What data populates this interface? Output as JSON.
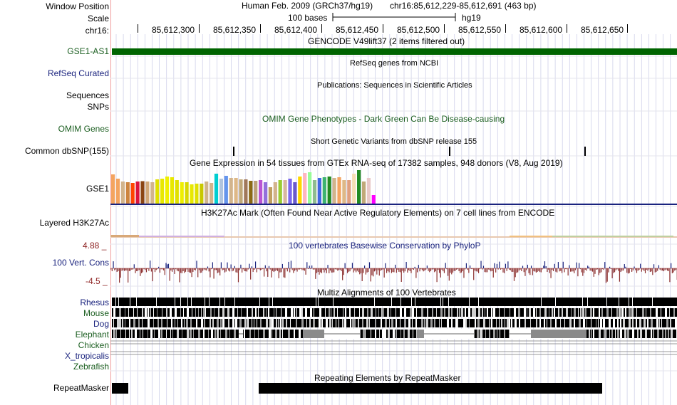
{
  "header": {
    "window_position_label": "Window Position",
    "assembly": "Human Feb. 2009 (GRCh37/hg19)",
    "position": "chr16:85,612,229-85,612,691 (463 bp)",
    "scale_label": "Scale",
    "scale_text": "100 bases",
    "scale_db": "hg19",
    "chrom_label": "chr16:",
    "ticks": [
      "85,612,300",
      "85,612,350",
      "85,612,400",
      "85,612,450",
      "85,612,500",
      "85,612,550",
      "85,612,600",
      "85,612,650"
    ]
  },
  "tracks": {
    "gencode": {
      "title": "GENCODE V49lift37 (2 items filtered out)",
      "label": "GSE1-AS1"
    },
    "refseq": {
      "title": "RefSeq genes from NCBI",
      "label": "RefSeq Curated"
    },
    "pubs": {
      "title": "Publications: Sequences in Scientific Articles",
      "label": "Sequences"
    },
    "snps": {
      "label": "SNPs"
    },
    "omim": {
      "title": "OMIM Gene Phenotypes - Dark Green Can Be Disease-causing",
      "label": "OMIM Genes"
    },
    "dbsnp": {
      "title": "Short Genetic Variants from dbSNP release 155",
      "label": "Common dbSNP(155)"
    },
    "gtex": {
      "title": "Gene Expression in 54 tissues from GTEx RNA-seq of 17382 samples, 948 donors (V8, Aug 2019)",
      "label": "GSE1"
    },
    "h3k27ac": {
      "title": "H3K27Ac Mark (Often Found Near Active Regulatory Elements) on 7 cell lines from ENCODE",
      "label": "Layered H3K27Ac"
    },
    "phylop": {
      "title": "100 vertebrates Basewise Conservation by PhyloP",
      "label": "100 Vert. Cons",
      "max": "4.88 _",
      "min": "-4.5 _"
    },
    "multiz": {
      "title": "Multiz Alignments of 100 Vertebrates",
      "species": [
        "Rhesus",
        "Mouse",
        "Dog",
        "Elephant",
        "Chicken",
        "X_tropicalis",
        "Zebrafish"
      ]
    },
    "rmsk": {
      "title": "Repeating Elements by RepeatMasker",
      "label": "RepeatMasker"
    }
  },
  "colors": {
    "gencode": "#006400",
    "navy": "#1a237e",
    "green": "#1b5e20",
    "axis": "#8e2323",
    "phylop_pos": "#1a237e",
    "phylop_neg": "#8b2e2e",
    "grid": "#cfd0ea",
    "redline": "#f0a0a0"
  },
  "gtex_colors": [
    "#f4a460",
    "#f4a460",
    "#d2b48c",
    "#cd853f",
    "#ff4500",
    "#dc143c",
    "#8b4513",
    "#d2a878",
    "#d2b48c",
    "#e0e000",
    "#e8e800",
    "#f0f000",
    "#e8e800",
    "#e0e000",
    "#eeee00",
    "#d8d800",
    "#e8e800",
    "#e0e000",
    "#c8c800",
    "#d0b48c",
    "#d2b48c",
    "#00ced1",
    "#b0c4de",
    "#6495ed",
    "#d2b48c",
    "#deb887",
    "#c0a878",
    "#a0785a",
    "#8b6914",
    "#bda07a",
    "#ba55d3",
    "#9370db",
    "#c0a060",
    "#d2b48c",
    "#9acd32",
    "#d8b8a0",
    "#7b68ee",
    "#6a5acd",
    "#ffd700",
    "#ffb6c1",
    "#98fb98",
    "#8fbc8f",
    "#4169e1",
    "#3cb371",
    "#228b22",
    "#d2b48c",
    "#f4a460",
    "#deb887",
    "#e0a080",
    "#f5deb3",
    "#228b22",
    "#c0a878",
    "#e8c8c8",
    "#ff00ff"
  ],
  "gtex_values": [
    0.82,
    0.7,
    0.62,
    0.6,
    0.58,
    0.62,
    0.63,
    0.62,
    0.6,
    0.68,
    0.7,
    0.76,
    0.74,
    0.66,
    0.6,
    0.6,
    0.54,
    0.56,
    0.56,
    0.62,
    0.58,
    0.84,
    0.7,
    0.78,
    0.72,
    0.72,
    0.68,
    0.68,
    0.64,
    0.64,
    0.66,
    0.6,
    0.46,
    0.6,
    0.66,
    0.66,
    0.7,
    0.6,
    0.76,
    0.86,
    0.88,
    0.66,
    0.72,
    0.74,
    0.76,
    0.72,
    0.74,
    0.66,
    0.66,
    0.84,
    0.94,
    0.62,
    0.72,
    0.24
  ]
}
